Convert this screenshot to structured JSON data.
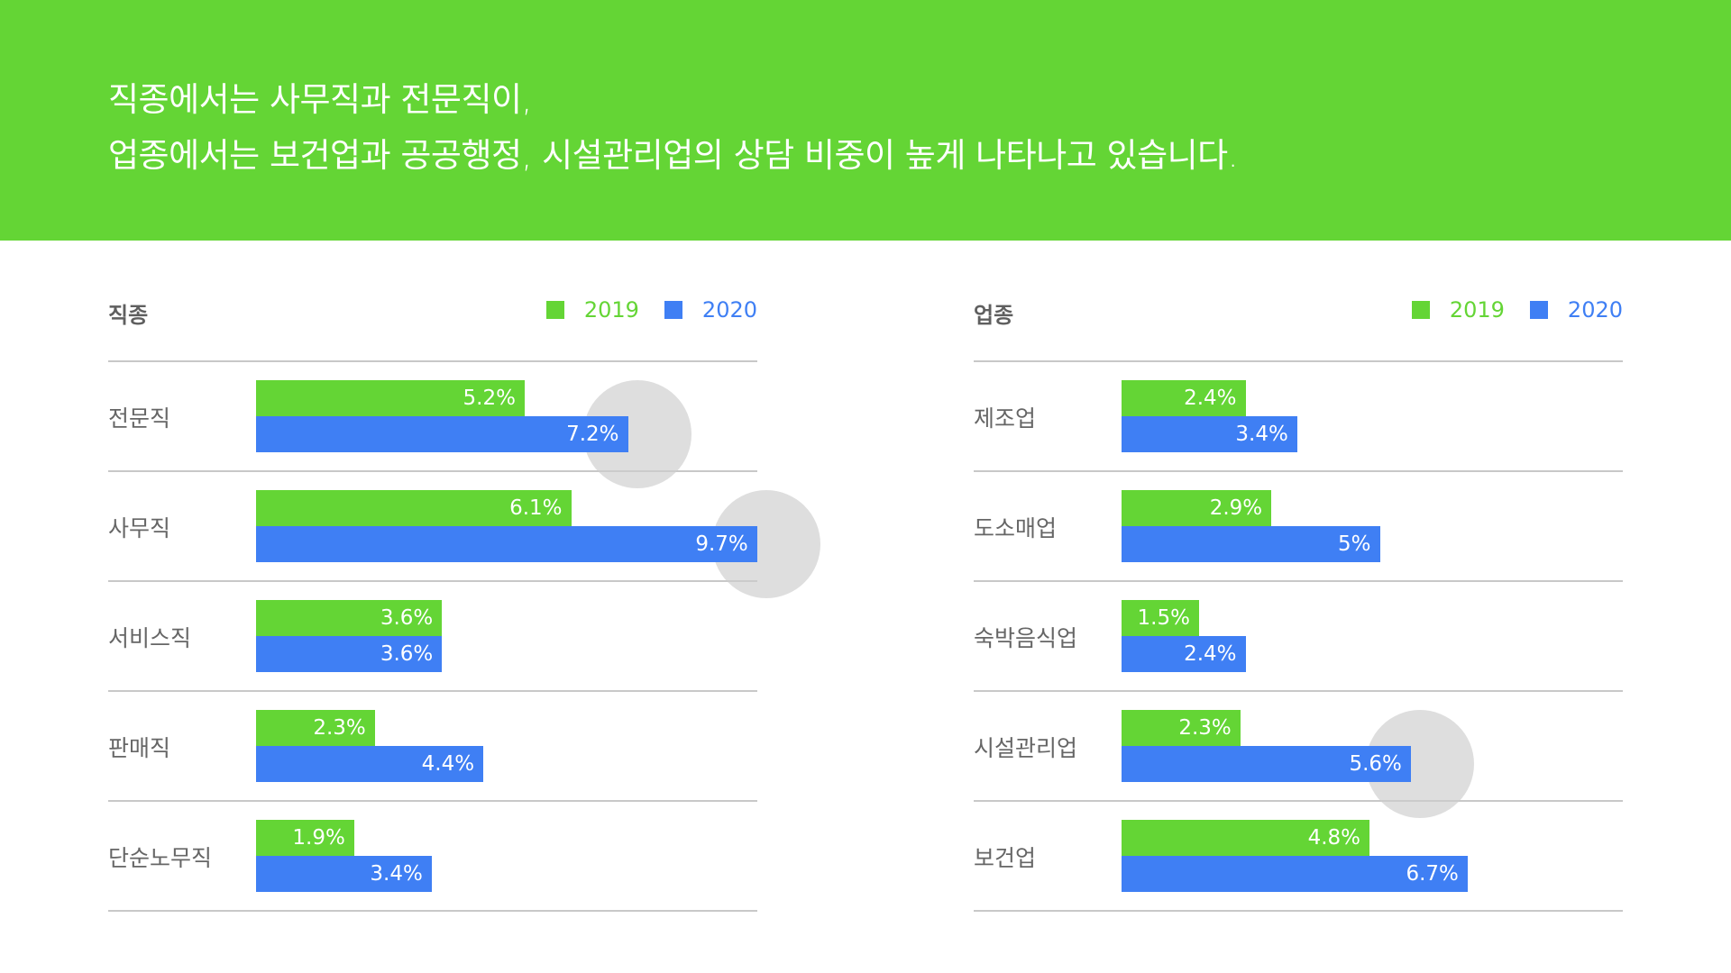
{
  "header": {
    "line1": "직종에서는 사무직과 전문직이,",
    "line2": "업종에서는 보건업과 공공행정, 시설관리업의 상담 비중이 높게 나타나고 있습니다."
  },
  "colors": {
    "banner": "#64d535",
    "series_2019": "#64d535",
    "series_2020": "#3f7ff4",
    "highlight": "#d3d3d3"
  },
  "chart_data": [
    {
      "type": "bar",
      "orientation": "horizontal",
      "title": "직종",
      "categories": [
        "전문직",
        "사무직",
        "서비스직",
        "판매직",
        "단순노무직"
      ],
      "series": [
        {
          "name": "2019",
          "values": [
            5.2,
            6.1,
            3.6,
            2.3,
            1.9
          ],
          "labels": [
            "5.2%",
            "6.1%",
            "3.6%",
            "2.3%",
            "1.9%"
          ]
        },
        {
          "name": "2020",
          "values": [
            7.2,
            9.7,
            3.6,
            4.4,
            3.4
          ],
          "labels": [
            "7.2%",
            "9.7%",
            "3.6%",
            "4.4%",
            "3.4%"
          ]
        }
      ],
      "highlighted": [
        {
          "category": "전문직",
          "series": "2020"
        },
        {
          "category": "사무직",
          "series": "2020"
        }
      ],
      "legend": "top-right"
    },
    {
      "type": "bar",
      "orientation": "horizontal",
      "title": "업종",
      "categories": [
        "제조업",
        "도소매업",
        "숙박음식업",
        "시설관리업",
        "보건업"
      ],
      "series": [
        {
          "name": "2019",
          "values": [
            2.4,
            2.9,
            1.5,
            2.3,
            4.8
          ],
          "labels": [
            "2.4%",
            "2.9%",
            "1.5%",
            "2.3%",
            "4.8%"
          ]
        },
        {
          "name": "2020",
          "values": [
            3.4,
            5,
            2.4,
            5.6,
            6.7
          ],
          "labels": [
            "3.4%",
            "5%",
            "2.4%",
            "5.6%",
            "6.7%"
          ]
        }
      ],
      "highlighted": [
        {
          "category": "시설관리업",
          "series": "2020"
        }
      ],
      "legend": "top-right"
    }
  ]
}
